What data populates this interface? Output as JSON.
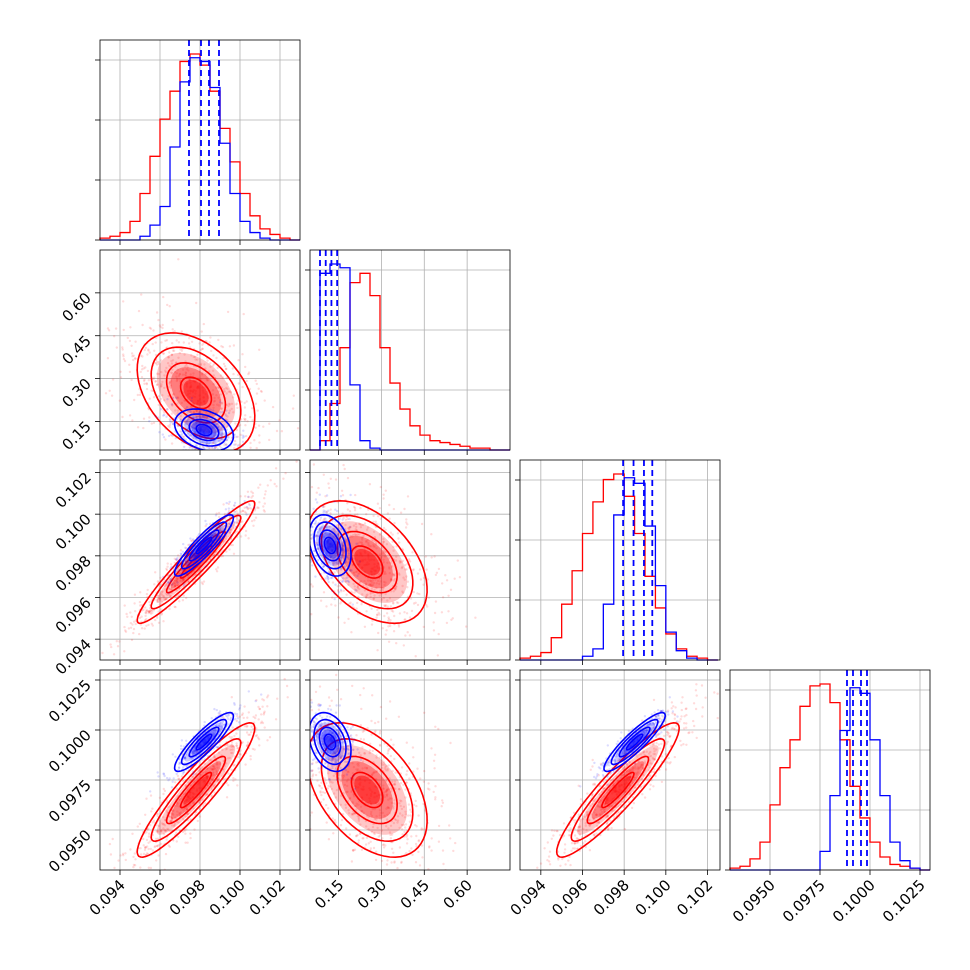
{
  "chart_data": {
    "type": "corner",
    "colors": {
      "red": "#ff0000",
      "blue": "#0000ff",
      "grid": "#b0b0b0"
    },
    "series": [
      {
        "color": "red"
      },
      {
        "color": "blue"
      }
    ],
    "params": [
      {
        "range": [
          0.093,
          0.103
        ],
        "xticks": [
          "0.094",
          "0.096",
          "0.098",
          "0.100",
          "0.102"
        ],
        "xtick_values": [
          0.094,
          0.096,
          0.098,
          0.1,
          0.102
        ]
      },
      {
        "range": [
          0.05,
          0.75
        ],
        "xticks": [
          "0.15",
          "0.30",
          "0.45",
          "0.60"
        ],
        "xtick_values": [
          0.15,
          0.3,
          0.45,
          0.6
        ],
        "yticks": [
          "0.15",
          "0.30",
          "0.45",
          "0.60"
        ],
        "ytick_values": [
          0.15,
          0.3,
          0.45,
          0.6
        ]
      },
      {
        "range": [
          0.093,
          0.1026
        ],
        "xticks": [
          "0.094",
          "0.096",
          "0.098",
          "0.100",
          "0.102"
        ],
        "xtick_values": [
          0.094,
          0.096,
          0.098,
          0.1,
          0.102
        ],
        "yticks": [
          "0.094",
          "0.096",
          "0.098",
          "0.100",
          "0.102"
        ],
        "ytick_values": [
          0.094,
          0.096,
          0.098,
          0.1,
          0.102
        ]
      },
      {
        "range": [
          0.093,
          0.103
        ],
        "xticks": [
          "0.0950",
          "0.0975",
          "0.1000",
          "0.1025"
        ],
        "xtick_values": [
          0.095,
          0.0975,
          0.1,
          0.1025
        ],
        "yticks": [
          "0.0950",
          "0.0975",
          "0.1000",
          "0.1025"
        ],
        "ytick_values": [
          0.095,
          0.0975,
          0.1,
          0.1025
        ]
      }
    ],
    "histograms": [
      {
        "bins": [
          0.093,
          0.0935,
          0.094,
          0.0945,
          0.095,
          0.0955,
          0.096,
          0.0965,
          0.097,
          0.0975,
          0.098,
          0.0985,
          0.099,
          0.0995,
          0.1,
          0.1005,
          0.101,
          0.1015,
          0.102,
          0.1025,
          0.103
        ],
        "red": [
          0.01,
          0.02,
          0.04,
          0.1,
          0.25,
          0.45,
          0.65,
          0.8,
          0.96,
          1.0,
          0.94,
          0.8,
          0.6,
          0.42,
          0.25,
          0.13,
          0.06,
          0.03,
          0.01,
          0.0
        ],
        "blue": [
          0.0,
          0.0,
          0.0,
          0.0,
          0.02,
          0.08,
          0.18,
          0.5,
          0.85,
          0.98,
          0.96,
          0.82,
          0.52,
          0.25,
          0.1,
          0.04,
          0.01,
          0.0,
          0.0,
          0.0
        ],
        "quantile_lines": [
          0.09745,
          0.09805,
          0.09845,
          0.09895
        ]
      },
      {
        "bins": [
          0.05,
          0.085,
          0.12,
          0.155,
          0.19,
          0.225,
          0.26,
          0.295,
          0.33,
          0.365,
          0.4,
          0.435,
          0.47,
          0.505,
          0.54,
          0.575,
          0.61,
          0.645,
          0.68,
          0.715,
          0.75
        ],
        "red": [
          0.0,
          0.05,
          0.25,
          0.55,
          0.9,
          0.95,
          0.83,
          0.55,
          0.36,
          0.22,
          0.13,
          0.08,
          0.05,
          0.04,
          0.03,
          0.02,
          0.01,
          0.01,
          0.0,
          0.0
        ],
        "blue": [
          0.0,
          0.95,
          1.0,
          0.98,
          0.35,
          0.05,
          0.01,
          0.0,
          0.0,
          0.0,
          0.0,
          0.0,
          0.0,
          0.0,
          0.0,
          0.0,
          0.0,
          0.0,
          0.0,
          0.0
        ],
        "quantile_lines": [
          0.085,
          0.105,
          0.125,
          0.145
        ]
      },
      {
        "bins": [
          0.093,
          0.0935,
          0.094,
          0.0945,
          0.095,
          0.0955,
          0.096,
          0.0965,
          0.097,
          0.0975,
          0.098,
          0.0985,
          0.099,
          0.0995,
          0.1,
          0.1005,
          0.101,
          0.1015,
          0.102,
          0.1025
        ],
        "red": [
          0.01,
          0.02,
          0.04,
          0.12,
          0.3,
          0.48,
          0.68,
          0.85,
          0.97,
          1.0,
          0.88,
          0.68,
          0.45,
          0.28,
          0.14,
          0.06,
          0.02,
          0.01,
          0.0
        ],
        "blue": [
          0.0,
          0.0,
          0.0,
          0.0,
          0.0,
          0.0,
          0.02,
          0.06,
          0.3,
          0.78,
          0.98,
          0.95,
          0.72,
          0.4,
          0.15,
          0.05,
          0.01,
          0.0,
          0.0
        ],
        "quantile_lines": [
          0.09795,
          0.09845,
          0.09895,
          0.09935
        ]
      },
      {
        "bins": [
          0.093,
          0.0935,
          0.094,
          0.0945,
          0.095,
          0.0955,
          0.096,
          0.0965,
          0.097,
          0.0975,
          0.098,
          0.0985,
          0.099,
          0.0995,
          0.1,
          0.1005,
          0.101,
          0.1015,
          0.102,
          0.1025,
          0.103
        ],
        "red": [
          0.01,
          0.02,
          0.06,
          0.15,
          0.35,
          0.55,
          0.7,
          0.88,
          0.99,
          1.0,
          0.9,
          0.7,
          0.45,
          0.28,
          0.15,
          0.07,
          0.03,
          0.02,
          0.01,
          0.0
        ],
        "blue": [
          0.0,
          0.0,
          0.0,
          0.0,
          0.0,
          0.0,
          0.0,
          0.0,
          0.0,
          0.1,
          0.4,
          0.75,
          0.98,
          0.95,
          0.7,
          0.4,
          0.15,
          0.05,
          0.01,
          0.0
        ],
        "quantile_lines": [
          0.09885,
          0.09915,
          0.09955,
          0.09985
        ]
      }
    ],
    "scatter_panels": [
      {
        "x": 0,
        "y": 1,
        "red": {
          "mean": [
            0.0978,
            0.25
          ],
          "sd": [
            0.0014,
            0.1
          ],
          "rho": -0.4
        },
        "blue": {
          "mean": [
            0.0982,
            0.12
          ],
          "sd": [
            0.0007,
            0.035
          ],
          "rho": -0.3
        }
      },
      {
        "x": 0,
        "y": 2,
        "red": {
          "mean": [
            0.0978,
            0.0977
          ],
          "sd": [
            0.0014,
            0.0014
          ],
          "rho": 0.95
        },
        "blue": {
          "mean": [
            0.0982,
            0.0985
          ],
          "sd": [
            0.0007,
            0.0007
          ],
          "rho": 0.9
        }
      },
      {
        "x": 0,
        "y": 3,
        "red": {
          "mean": [
            0.0978,
            0.097
          ],
          "sd": [
            0.0014,
            0.0016
          ],
          "rho": 0.92
        },
        "blue": {
          "mean": [
            0.0982,
            0.0994
          ],
          "sd": [
            0.0007,
            0.0007
          ],
          "rho": 0.88
        }
      },
      {
        "x": 1,
        "y": 2,
        "red": {
          "mean": [
            0.25,
            0.0977
          ],
          "sd": [
            0.1,
            0.0014
          ],
          "rho": -0.45
        },
        "blue": {
          "mean": [
            0.12,
            0.0985
          ],
          "sd": [
            0.035,
            0.0007
          ],
          "rho": -0.3
        }
      },
      {
        "x": 1,
        "y": 3,
        "red": {
          "mean": [
            0.25,
            0.097
          ],
          "sd": [
            0.1,
            0.0016
          ],
          "rho": -0.45
        },
        "blue": {
          "mean": [
            0.12,
            0.0994
          ],
          "sd": [
            0.035,
            0.0007
          ],
          "rho": -0.3
        }
      },
      {
        "x": 2,
        "y": 3,
        "red": {
          "mean": [
            0.0977,
            0.097
          ],
          "sd": [
            0.0014,
            0.0016
          ],
          "rho": 0.92
        },
        "blue": {
          "mean": [
            0.0985,
            0.0994
          ],
          "sd": [
            0.0007,
            0.0007
          ],
          "rho": 0.9
        }
      }
    ],
    "grid": true,
    "legend": "none"
  }
}
